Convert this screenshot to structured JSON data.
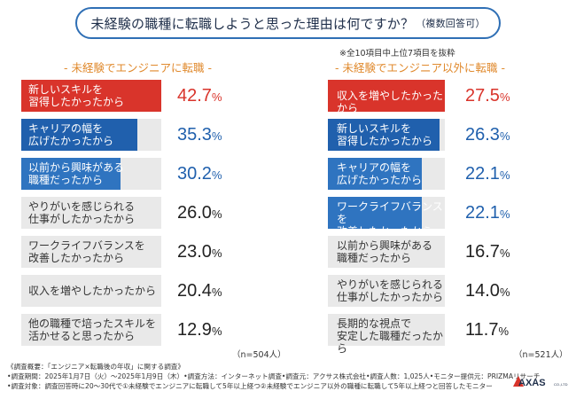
{
  "title": {
    "main": "未経験の職種に転職しようと思った理由は何ですか？",
    "suffix": "（複数回答可）"
  },
  "note_top": "※全10項目中上位7項目を抜粋",
  "colors": {
    "red": "#d9342b",
    "blue": "#2060ad",
    "blue_mid": "#2f74c0",
    "gray_bar": "#e9e9e9",
    "orange": "#e08a2e",
    "title_border": "#2f6fb5"
  },
  "chart_data": [
    {
      "type": "bar",
      "orientation": "horizontal",
      "title": "- 未経験でエンジニアに転職 -",
      "categories": [
        "新しいスキルを\n習得したかったから",
        "キャリアの幅を\n広げたかったから",
        "以前から興味がある\n職種だったから",
        "やりがいを感じられる\n仕事がしたかったから",
        "ワークライフバランスを\n改善したかったから",
        "収入を増やしたかったから",
        "他の職種で培ったスキルを\n活かせると思ったから"
      ],
      "values": [
        42.7,
        35.3,
        30.2,
        26.0,
        23.0,
        20.4,
        12.9
      ],
      "value_labels": [
        "42.7%",
        "35.3%",
        "30.2%",
        "26.0%",
        "23.0%",
        "20.4%",
        "12.9%"
      ],
      "bar_colors": [
        "#d9342b",
        "#2060ad",
        "#2f74c0",
        "#e9e9e9",
        "#e9e9e9",
        "#e9e9e9",
        "#e9e9e9"
      ],
      "n_label": "（n=504人）",
      "xlim": [
        0,
        42.7
      ]
    },
    {
      "type": "bar",
      "orientation": "horizontal",
      "title": "- 未経験でエンジニア以外に転職 -",
      "categories": [
        "収入を増やしたかったから",
        "新しいスキルを\n習得したかったから",
        "キャリアの幅を\n広げたかったから",
        "ワークライフバランスを\n改善したかったから",
        "以前から興味がある\n職種だったから",
        "やりがいを感じられる\n仕事がしたかったから",
        "長期的な視点で\n安定した職種だったから"
      ],
      "values": [
        27.5,
        26.3,
        22.1,
        22.1,
        16.7,
        14.0,
        11.7
      ],
      "value_labels": [
        "27.5%",
        "26.3%",
        "22.1%",
        "22.1%",
        "16.7%",
        "14.0%",
        "11.7%"
      ],
      "bar_colors": [
        "#d9342b",
        "#2060ad",
        "#2f74c0",
        "#2f74c0",
        "#e9e9e9",
        "#e9e9e9",
        "#e9e9e9"
      ],
      "n_label": "（n=521人）",
      "xlim": [
        0,
        27.5
      ]
    }
  ],
  "footer": [
    "《調査概要：「エンジニア×転職後の年収」に関する調査》",
    "•調査期間：2025年1月7日（火）〜2025年1月9日（木）•調査方法：インターネット調査•調査元：アクサス株式会社•調査人数：1,025人•モニター提供元：PRIZMAリサーチ",
    "•調査対象：調査回答時に20〜30代で①未経験でエンジニアに転職して5年以上経つ②未経験でエンジニア以外の職種に転職して5年以上経つと回答したモニター"
  ],
  "logo": {
    "text": "AXAS",
    "sub": "CO.,LTD"
  }
}
